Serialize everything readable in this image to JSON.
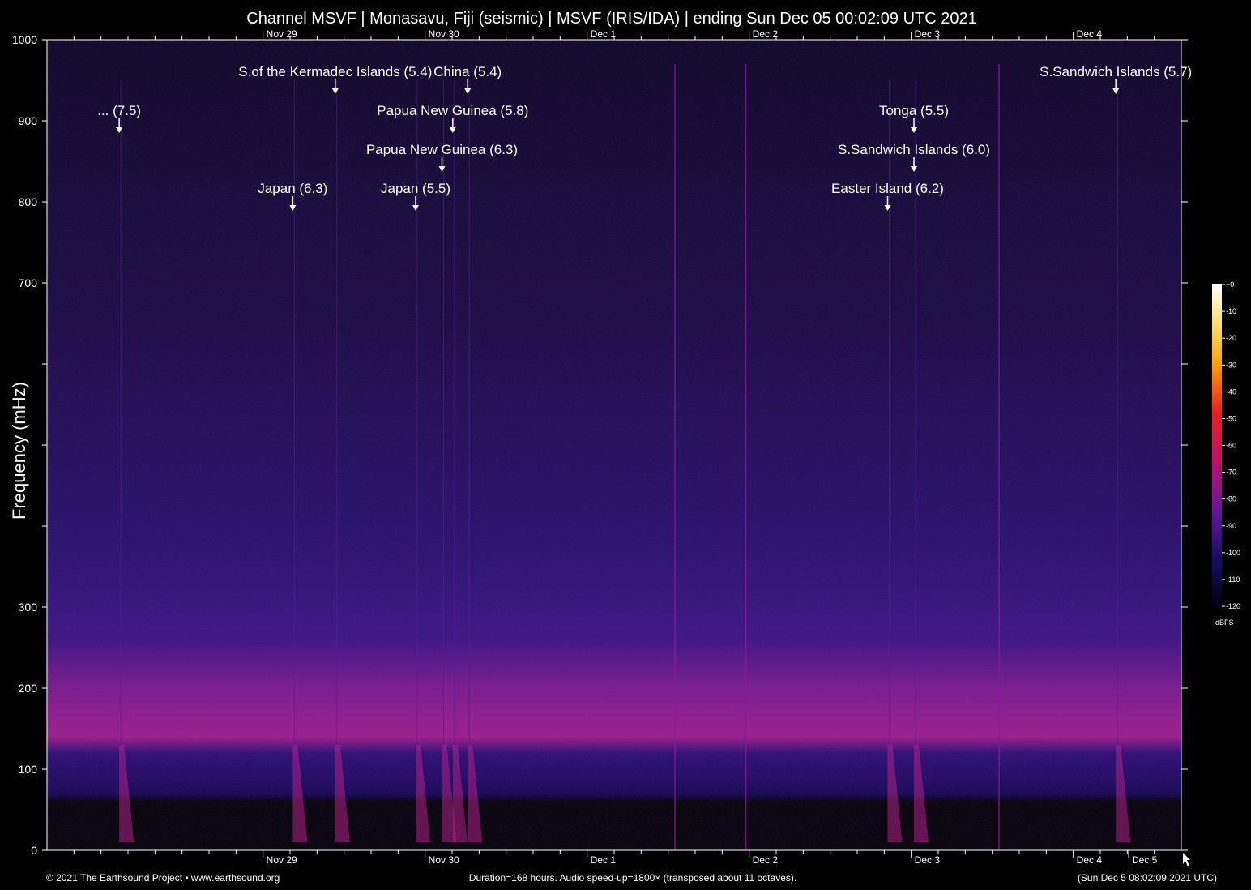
{
  "chart_data": {
    "type": "heatmap",
    "title": "Channel MSVF | Monasavu, Fiji (seismic) | MSVF (IRIS/IDA) | ending Sun Dec 05 00:02:09 UTC 2021",
    "ylabel": "Frequency (mHz)",
    "ylim": [
      0,
      1000
    ],
    "y_ticks": [
      0,
      100,
      200,
      300,
      400,
      500,
      600,
      700,
      800,
      900,
      1000
    ],
    "y_tick_labels": [
      "0",
      "100",
      "200",
      "300",
      "",
      "",
      "",
      "700",
      "800",
      "900",
      "1000"
    ],
    "x_range_hours": [
      0,
      168
    ],
    "x_day_labels": [
      {
        "label": "Nov 29",
        "hour": 32
      },
      {
        "label": "Nov 30",
        "hour": 56
      },
      {
        "label": "Dec  1",
        "hour": 80
      },
      {
        "label": "Dec  2",
        "hour": 104
      },
      {
        "label": "Dec  3",
        "hour": 128
      },
      {
        "label": "Dec  4",
        "hour": 152
      }
    ],
    "x_extra_bottom_label": {
      "label": "Dec  5",
      "hour": 176
    },
    "events": [
      {
        "label": "... (7.5)",
        "hour": 10.7,
        "row": 2
      },
      {
        "label": "S.of the Kermadec Islands (5.4)",
        "hour": 42.7,
        "row": 1
      },
      {
        "label": "China (5.4)",
        "hour": 62.3,
        "row": 1
      },
      {
        "label": "Papua New Guinea (5.8)",
        "hour": 60.1,
        "row": 2
      },
      {
        "label": "Papua New Guinea (6.3)",
        "hour": 58.5,
        "row": 3
      },
      {
        "label": "Japan (6.3)",
        "hour": 36.4,
        "row": 4
      },
      {
        "label": "Japan (5.5)",
        "hour": 54.6,
        "row": 4
      },
      {
        "label": "S.Sandwich Islands (5.7)",
        "hour": 158.3,
        "row": 1
      },
      {
        "label": "Tonga (5.5)",
        "hour": 128.4,
        "row": 2
      },
      {
        "label": "S.Sandwich Islands (6.0)",
        "hour": 128.4,
        "row": 3
      },
      {
        "label": "Easter Island (6.2)",
        "hour": 124.5,
        "row": 4
      }
    ],
    "colorbar": {
      "ticks": [
        "+0",
        "-10",
        "-20",
        "-30",
        "-40",
        "-50",
        "-60",
        "-70",
        "-80",
        "-90",
        "-100",
        "-110",
        "-120"
      ],
      "unit": "dBFS"
    },
    "footer": {
      "left": "© 2021 The Earthsound Project • www.earthsound.org",
      "center": "Duration=168 hours. Audio speed-up=1800× (transposed about 11 octaves).",
      "right": "(Sun Dec  5 08:02:09 2021 UTC)"
    }
  }
}
